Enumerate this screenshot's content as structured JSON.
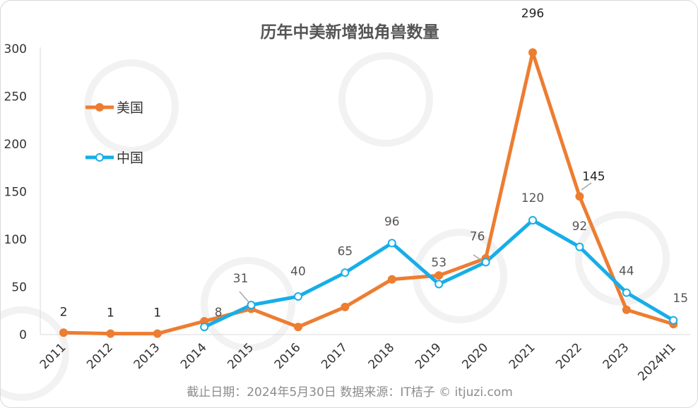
{
  "chart_data": {
    "type": "line",
    "title": "历年中美新增独角兽数量",
    "categories": [
      "2011",
      "2012",
      "2013",
      "2014",
      "2015",
      "2016",
      "2017",
      "2018",
      "2019",
      "2020",
      "2021",
      "2022",
      "2023",
      "2024H1"
    ],
    "ylim": [
      0,
      300
    ],
    "yticks": [
      0,
      50,
      100,
      150,
      200,
      250,
      300
    ],
    "grid": false,
    "legend": "left",
    "series": [
      {
        "name": "美国",
        "color": "#ED7D31",
        "marker": "filled",
        "values": [
          2,
          1,
          1,
          14,
          27,
          8,
          29,
          58,
          62,
          80,
          296,
          145,
          26,
          11
        ]
      },
      {
        "name": "中国",
        "color": "#17AEE8",
        "marker": "hollow",
        "values": [
          null,
          null,
          null,
          8,
          31,
          40,
          65,
          96,
          53,
          76,
          120,
          92,
          44,
          15
        ]
      }
    ],
    "data_labels": [
      {
        "text": "2",
        "category": "2011",
        "value": 2,
        "color": "#222222"
      },
      {
        "text": "1",
        "category": "2012",
        "value": 1,
        "color": "#222222"
      },
      {
        "text": "1",
        "category": "2013",
        "value": 1,
        "color": "#222222"
      },
      {
        "text": "8",
        "category": "2014",
        "value": 8,
        "color": "#555555"
      },
      {
        "text": "31",
        "category": "2015",
        "value": 31,
        "color": "#555555"
      },
      {
        "text": "40",
        "category": "2016",
        "value": 40,
        "color": "#555555"
      },
      {
        "text": "65",
        "category": "2017",
        "value": 65,
        "color": "#555555"
      },
      {
        "text": "96",
        "category": "2018",
        "value": 96,
        "color": "#555555"
      },
      {
        "text": "53",
        "category": "2019",
        "value": 53,
        "color": "#555555"
      },
      {
        "text": "76",
        "category": "2020",
        "value": 76,
        "color": "#555555"
      },
      {
        "text": "296",
        "category": "2021",
        "value": 296,
        "color": "#222222"
      },
      {
        "text": "120",
        "category": "2021",
        "value": 120,
        "color": "#555555"
      },
      {
        "text": "145",
        "category": "2022",
        "value": 145,
        "color": "#222222"
      },
      {
        "text": "92",
        "category": "2022",
        "value": 92,
        "color": "#555555"
      },
      {
        "text": "44",
        "category": "2023",
        "value": 44,
        "color": "#555555"
      },
      {
        "text": "15",
        "category": "2024H1",
        "value": 15,
        "color": "#555555"
      }
    ]
  },
  "footer": "截止日期：2024年5月30日    数据来源：IT桔子 © itjuzi.com",
  "watermark": {
    "brand": "IT桔子",
    "site": "ITJUZI.COM"
  }
}
